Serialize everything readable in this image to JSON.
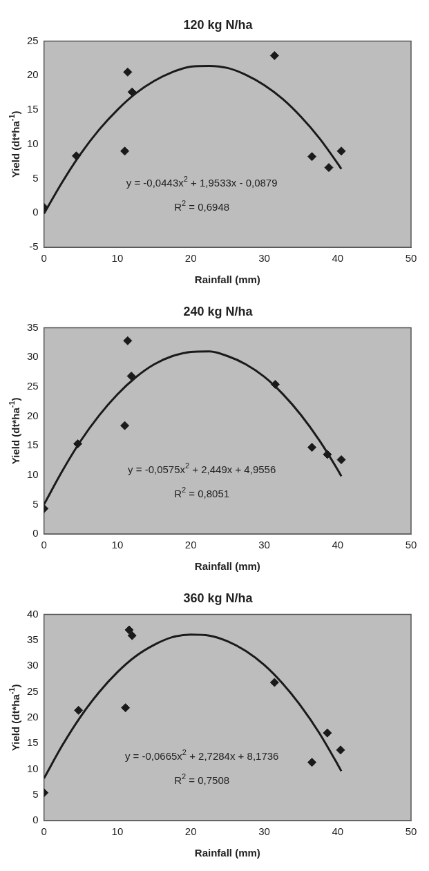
{
  "chart_data": [
    {
      "type": "scatter",
      "title": "120 kg N/ha",
      "xlabel": "Rainfall (mm)",
      "ylabel": "Yield (dt*ha$^{-1}$)",
      "xlim": [
        0,
        50
      ],
      "xticks": [
        0,
        10,
        20,
        30,
        40,
        50
      ],
      "ylim": [
        -5,
        25
      ],
      "yticks": [
        -5,
        0,
        5,
        10,
        15,
        20,
        25
      ],
      "grid": false,
      "legend": false,
      "annotations": [
        "y = -0,0443x$^{2}$ + 1,9533x - 0,0879",
        "R$^{2}$ = 0,6948"
      ],
      "series": [
        {
          "marker": "diamond",
          "color": "#1a1a1a",
          "x": [
            0,
            4.4,
            11.0,
            11.4,
            12.0,
            31.4,
            36.5,
            38.8,
            40.5
          ],
          "values": [
            0.8,
            8.3,
            9.0,
            20.5,
            17.6,
            22.9,
            8.2,
            6.6,
            9.0
          ]
        },
        {
          "type": "line",
          "marker": "none",
          "color": "#1a1a1a",
          "x": [
            0,
            2.5,
            5,
            7.5,
            10,
            12.5,
            15,
            17.5,
            20,
            22.5,
            25,
            27.5,
            30,
            32.5,
            35,
            37.5,
            40,
            40.5
          ],
          "values": [
            -0.1,
            4.5,
            8.6,
            12.1,
            15.0,
            17.4,
            19.2,
            20.5,
            21.3,
            21.4,
            21.1,
            20.1,
            18.6,
            16.6,
            14.0,
            10.9,
            7.2,
            6.4
          ]
        }
      ]
    },
    {
      "type": "scatter",
      "title": "240 kg N/ha",
      "xlabel": "Rainfall (mm)",
      "ylabel": "Yield (dt*ha$^{-1}$)",
      "xlim": [
        0,
        50
      ],
      "xticks": [
        0,
        10,
        20,
        30,
        40,
        50
      ],
      "ylim": [
        0,
        35
      ],
      "yticks": [
        0,
        5,
        10,
        15,
        20,
        25,
        30,
        35
      ],
      "grid": false,
      "legend": false,
      "annotations": [
        "y = -0,0575x$^{2}$ + 2,449x + 4,9556",
        "R$^{2}$ = 0,8051"
      ],
      "series": [
        {
          "marker": "diamond",
          "color": "#1a1a1a",
          "x": [
            0,
            4.6,
            11.0,
            11.4,
            11.9,
            31.5,
            36.5,
            38.6,
            40.5
          ],
          "values": [
            4.3,
            15.3,
            18.4,
            32.8,
            26.8,
            25.4,
            14.7,
            13.5,
            12.6
          ]
        },
        {
          "type": "line",
          "marker": "none",
          "color": "#1a1a1a",
          "x": [
            0,
            2.5,
            5,
            7.5,
            10,
            12.5,
            15,
            17.5,
            20,
            22.5,
            25,
            27.5,
            30,
            32.5,
            35,
            37.5,
            40,
            40.5
          ],
          "values": [
            5.0,
            10.7,
            15.8,
            20.1,
            23.7,
            26.6,
            28.8,
            30.2,
            30.9,
            31.0,
            30.2,
            28.8,
            26.7,
            23.8,
            20.2,
            15.9,
            10.9,
            9.8
          ]
        }
      ]
    },
    {
      "type": "scatter",
      "title": "360 kg N/ha",
      "xlabel": "Rainfall (mm)",
      "ylabel": "Yield (dt*ha$^{-1}$)",
      "xlim": [
        0,
        50
      ],
      "xticks": [
        0,
        10,
        20,
        30,
        40,
        50
      ],
      "ylim": [
        0,
        40
      ],
      "yticks": [
        0,
        5,
        10,
        15,
        20,
        25,
        30,
        35,
        40
      ],
      "grid": false,
      "legend": false,
      "annotations": [
        "y = -0,0665x$^{2}$ + 2,7284x + 8,1736",
        "R$^{2}$ = 0,7508"
      ],
      "series": [
        {
          "marker": "diamond",
          "color": "#1a1a1a",
          "x": [
            0,
            4.7,
            11.1,
            11.6,
            12.0,
            31.4,
            36.5,
            38.6,
            40.4
          ],
          "values": [
            5.4,
            21.4,
            21.9,
            37.0,
            35.9,
            26.8,
            11.3,
            17.0,
            13.7
          ]
        },
        {
          "type": "line",
          "marker": "none",
          "color": "#1a1a1a",
          "x": [
            0,
            2.5,
            5,
            7.5,
            10,
            12.5,
            15,
            17.5,
            20,
            22.5,
            25,
            27.5,
            30,
            32.5,
            35,
            37.5,
            40,
            40.5
          ],
          "values": [
            8.2,
            14.6,
            20.2,
            24.9,
            28.8,
            31.9,
            34.1,
            35.6,
            36.1,
            35.9,
            34.8,
            32.9,
            30.2,
            26.6,
            22.2,
            17.0,
            10.9,
            9.6
          ]
        }
      ]
    }
  ]
}
